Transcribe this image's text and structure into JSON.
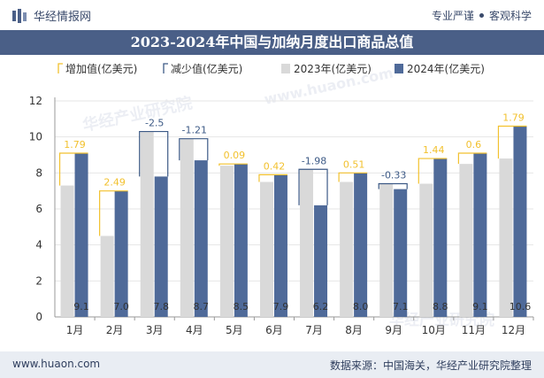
{
  "header": {
    "site_name": "华经情报网",
    "tagline_left": "专业严谨",
    "tagline_right": "客观科学"
  },
  "footer": {
    "url": "www.huaon.com",
    "source": "数据来源：中国海关，华经产业研究院整理"
  },
  "watermarks": [
    "华经产业研究院",
    "www.huaon.com",
    "华经产业研究院"
  ],
  "colors": {
    "increase": "#f2c12e",
    "decrease": "#3d5a86",
    "bar2023": "#d9d9d9",
    "bar2024": "#4f6a99",
    "title_bg": "#4a5f87"
  },
  "chart_data": {
    "type": "bar",
    "title": "2023-2024年中国与加纳月度出口商品总值",
    "categories": [
      "1月",
      "2月",
      "3月",
      "4月",
      "5月",
      "6月",
      "7月",
      "8月",
      "9月",
      "10月",
      "11月",
      "12月"
    ],
    "series": [
      {
        "name": "2023年(亿美元)",
        "values": [
          7.3,
          4.5,
          10.3,
          9.9,
          8.4,
          7.5,
          8.2,
          7.5,
          7.4,
          7.4,
          8.5,
          8.8
        ]
      },
      {
        "name": "2024年(亿美元)",
        "values": [
          9.1,
          7.0,
          7.8,
          8.7,
          8.5,
          7.9,
          6.2,
          8.0,
          7.1,
          8.8,
          9.1,
          10.6
        ]
      }
    ],
    "change": {
      "values": [
        1.79,
        2.49,
        -2.5,
        -1.21,
        0.09,
        0.42,
        -1.98,
        0.51,
        -0.33,
        1.44,
        0.6,
        1.79
      ],
      "labels": [
        "1.79",
        "2.49",
        "-2.5",
        "-1.21",
        "0.09",
        "0.42",
        "-1.98",
        "0.51",
        "-0.33",
        "1.44",
        "0.6",
        "1.79"
      ]
    },
    "bar_labels_2024": [
      "9.1",
      "7.0",
      "7.8",
      "8.7",
      "8.5",
      "7.9",
      "6.2",
      "8.0",
      "7.1",
      "8.8",
      "9.1",
      "10.6"
    ],
    "legend": [
      "增加值(亿美元)",
      "减少值(亿美元)",
      "2023年(亿美元)",
      "2024年(亿美元)"
    ],
    "y_ticks": [
      "0",
      "2",
      "4",
      "6",
      "8",
      "10",
      "12"
    ],
    "ylim": [
      0,
      12
    ],
    "xlabel": "",
    "ylabel": ""
  }
}
